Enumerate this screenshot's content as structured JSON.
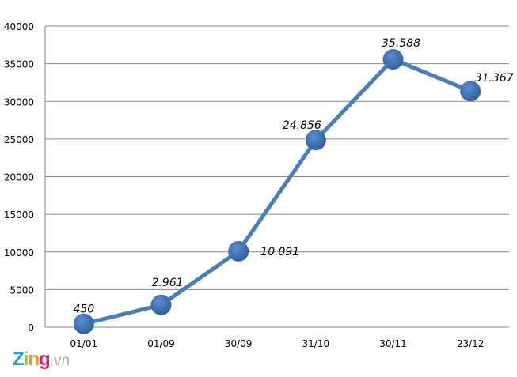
{
  "chart_data": {
    "type": "line",
    "categories": [
      "01/01",
      "01/09",
      "30/09",
      "31/10",
      "30/11",
      "23/12"
    ],
    "values": [
      450,
      2961,
      10091,
      24856,
      35588,
      31367
    ],
    "data_labels": [
      "450",
      "2.961",
      "10.091",
      "24.856",
      "35.588",
      "31.367"
    ],
    "ylim": [
      0,
      40000
    ],
    "yticks": [
      0,
      5000,
      10000,
      15000,
      20000,
      25000,
      30000,
      35000,
      40000
    ],
    "grid": true,
    "title": "",
    "xlabel": "",
    "ylabel": "",
    "line_color": "#4a7ebb",
    "marker_color": "#3d6fb5"
  },
  "logo": {
    "brand": "Zing",
    ".vn": ".vn",
    "letters": [
      "Z",
      "i",
      "n",
      "g"
    ],
    "suffix": ".vn"
  }
}
